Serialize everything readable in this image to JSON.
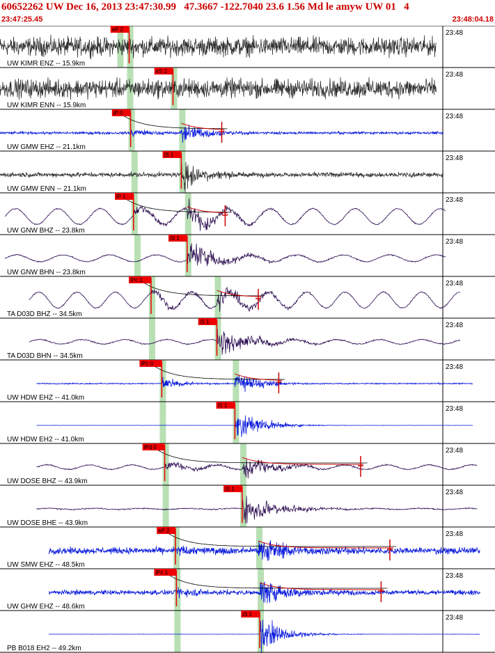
{
  "header": {
    "title": "60652262 UW Dec 16, 2013 23:47:30.99   47.3667 -122.7040 23.6 1.56 Md le amyw UW 01   4",
    "start_time": "23:47:25.45",
    "end_time": "23:48:04.18"
  },
  "colors": {
    "accent": "#cc0000",
    "pick_fill": "#ee0000",
    "window_green": "#b8e0b4",
    "trace_blue": "#0a1adc",
    "trace_purple": "#2a0a50",
    "trace_gray": "#333333",
    "coda_line": "#cc0000",
    "border": "#000000"
  },
  "traces": [
    {
      "label": "UW KIMR ENZ -- 15.9km",
      "time": "23:48",
      "pick": "eP 2",
      "pick_pos": 0.265,
      "win": [
        0.265,
        0.245
      ],
      "color": "gray",
      "style": "noise",
      "start": 0.0,
      "end": 0.895,
      "amp": 0.55,
      "coda": false,
      "dur": false
    },
    {
      "label": "UW KIMR ENN -- 15.9km",
      "time": "23:48",
      "pick": "eS 2",
      "pick_pos": 0.355,
      "win": [
        0.265,
        0.355
      ],
      "color": "gray",
      "style": "noise",
      "start": 0.0,
      "end": 0.895,
      "amp": 0.55,
      "coda": false,
      "dur": false
    },
    {
      "label": "UW GMW EHZ -- 21.1km",
      "time": "23:48",
      "pick": "iP 0",
      "pick_pos": 0.268,
      "win": [
        0.268,
        0.372
      ],
      "color": "blue",
      "style": "event",
      "start": 0.0,
      "end": 0.91,
      "amp": 0.25,
      "s_pos": 0.372,
      "coda": true,
      "dur": 0.455
    },
    {
      "label": "UW GMW ENN -- 21.1km",
      "time": "23:48",
      "pick": "iS 1",
      "pick_pos": 0.372,
      "win": [
        0.274,
        0.372
      ],
      "color": "gray",
      "style": "event",
      "start": 0.0,
      "end": 0.91,
      "amp": 0.45,
      "s_pos": 0.372,
      "coda": false,
      "dur": false
    },
    {
      "label": "UW GNW BHZ -- 23.8km",
      "time": "23:48",
      "pick": "iP 1",
      "pick_pos": 0.274,
      "win": [
        0.274,
        0.384
      ],
      "color": "purple",
      "style": "wave",
      "start": 0.01,
      "end": 0.915,
      "amp": 0.28,
      "s_pos": 0.384,
      "coda": true,
      "dur": 0.462
    },
    {
      "label": "UW GNW BHN -- 23.8km",
      "time": "23:48",
      "pick": "iS 1",
      "pick_pos": 0.384,
      "win": [
        0.28,
        0.384
      ],
      "color": "purple",
      "style": "wave",
      "start": 0.01,
      "end": 0.915,
      "amp": 0.12,
      "s_pos": 0.384,
      "coda": false,
      "dur": false
    },
    {
      "label": "TA D03D BHZ -- 34.5km",
      "time": "23:48",
      "pick": "iPc 1",
      "pick_pos": 0.31,
      "win": [
        0.31,
        0.445
      ],
      "color": "purple",
      "style": "wave",
      "start": 0.06,
      "end": 0.945,
      "amp": 0.28,
      "s_pos": 0.445,
      "coda": true,
      "dur": 0.53
    },
    {
      "label": "TA D03D BHN -- 34.5km",
      "time": "23:48",
      "pick": "iS 1",
      "pick_pos": 0.445,
      "win": [
        0.31,
        0.445
      ],
      "color": "purple",
      "style": "wave",
      "start": 0.06,
      "end": 0.945,
      "amp": 0.08,
      "s_pos": 0.445,
      "coda": false,
      "dur": false
    },
    {
      "label": "UW HDW EHZ -- 41.0km",
      "time": "23:48",
      "pick": "iPc 0",
      "pick_pos": 0.332,
      "win": [
        0.332,
        0.482
      ],
      "color": "blue",
      "style": "event",
      "start": 0.075,
      "end": 0.97,
      "amp": 0.12,
      "s_pos": 0.482,
      "coda": true,
      "dur": 0.572
    },
    {
      "label": "UW HDW EH2 -- 41.0km",
      "time": "23:48",
      "pick": "iS 1",
      "pick_pos": 0.482,
      "win": [
        0.332,
        0.482
      ],
      "color": "blue",
      "style": "event",
      "start": 0.075,
      "end": 0.97,
      "amp": 0.02,
      "s_pos": 0.482,
      "coda": false,
      "dur": false
    },
    {
      "label": "UW DOSE BHZ -- 43.9km",
      "time": "23:48",
      "pick": "iPd 0",
      "pick_pos": 0.338,
      "win": [
        0.338,
        0.497
      ],
      "color": "purple",
      "style": "wave",
      "start": 0.075,
      "end": 0.98,
      "amp": 0.08,
      "s_pos": 0.497,
      "coda": true,
      "dur": 0.74
    },
    {
      "label": "UW DOSE BHE -- 43.9km",
      "time": "23:48",
      "pick": "iS 1",
      "pick_pos": 0.497,
      "win": [
        0.338,
        0.497
      ],
      "color": "purple",
      "style": "wave",
      "start": 0.075,
      "end": 0.98,
      "amp": 0.02,
      "s_pos": 0.497,
      "coda": false,
      "dur": false
    },
    {
      "label": "UW SMW EHZ -- 48.5km",
      "time": "23:48",
      "pick": "eP 2",
      "pick_pos": 0.36,
      "win": [
        0.36,
        0.53
      ],
      "color": "blue",
      "style": "noisy",
      "start": 0.1,
      "end": 0.985,
      "amp": 0.25,
      "s_pos": 0.53,
      "coda": true,
      "dur": 0.8
    },
    {
      "label": "UW GHW EHZ -- 48.6km",
      "time": "23:48",
      "pick": "iPc 1",
      "pick_pos": 0.362,
      "win": [
        0.362,
        0.533
      ],
      "color": "blue",
      "style": "noisy",
      "start": 0.1,
      "end": 0.985,
      "amp": 0.18,
      "s_pos": 0.533,
      "coda": true,
      "dur": 0.782
    },
    {
      "label": "PB B018 EH2 -- 49.2km",
      "time": "23:48",
      "pick": "iS 1",
      "pick_pos": 0.533,
      "win": [
        0.362,
        0.533
      ],
      "color": "blue",
      "style": "event",
      "start": 0.1,
      "end": 0.985,
      "amp": 0.03,
      "s_pos": 0.533,
      "coda": false,
      "dur": false
    }
  ]
}
